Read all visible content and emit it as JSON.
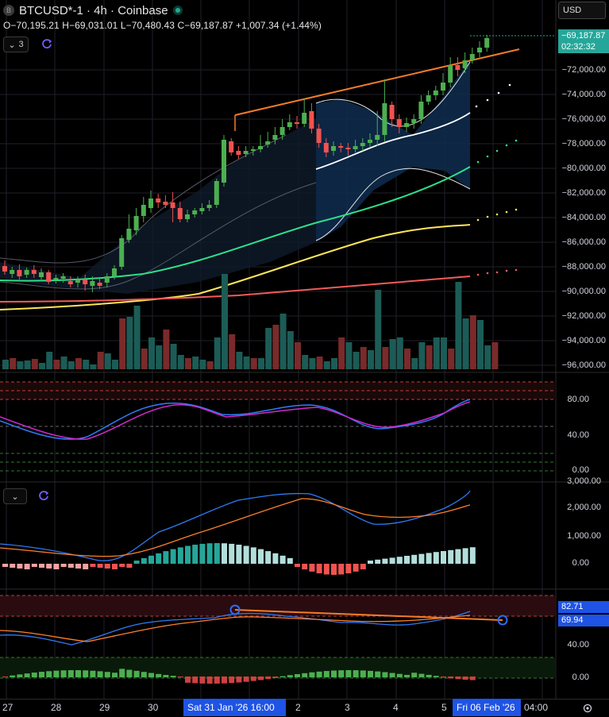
{
  "header": {
    "symbol_badge": "B",
    "title": "BTCUSD*-1 · 4h · Coinbase",
    "ohlc": "O−70,195.21  H−69,031.01  L−70,480.43  C−69,187.87  +1,007.34 (+1.44%)",
    "indicator_count": "3"
  },
  "currency": "USD",
  "price_axis": {
    "labels": [
      "−72,000.00",
      "−74,000.00",
      "−76,000.00",
      "−78,000.00",
      "−80,000.00",
      "−82,000.00",
      "−84,000.00",
      "−86,000.00",
      "−88,000.00",
      "−90,000.00",
      "−92,000.00",
      "−94,000.00",
      "−96,000.00"
    ],
    "current_price": "−69,187.87",
    "countdown": "02:32:32"
  },
  "stoch_axis": {
    "labels": [
      "80.00",
      "40.00",
      "0.00"
    ]
  },
  "macd_axis": {
    "labels": [
      "3,000.00",
      "2,000.00",
      "1,000.00",
      "0.00"
    ]
  },
  "rsi_axis": {
    "labels": [
      "40.00",
      "0.00"
    ],
    "tag1": "82.71",
    "tag2": "69.94"
  },
  "time_axis": {
    "labels": [
      "27",
      "28",
      "29",
      "30",
      "2",
      "3",
      "4",
      "5"
    ],
    "highlight_left": "Sat 31 Jan '26   16:00",
    "highlight_right": "Fri 06 Feb '26",
    "extra": "04:00"
  },
  "colors": {
    "up": "#26a69a",
    "candle_up": "#4caf50",
    "down": "#ef5350",
    "orange": "#f57c2a",
    "green_ma": "#2ee08a",
    "yellow_ma": "#ffe55a",
    "red_ma": "#f25b5b",
    "macd_line": "#2f7bf5",
    "signal_line": "#ff7f2a",
    "stoch_k": "#2f7bf5",
    "stoch_d": "#d02ad0",
    "accent_blue": "#1e53e5"
  }
}
